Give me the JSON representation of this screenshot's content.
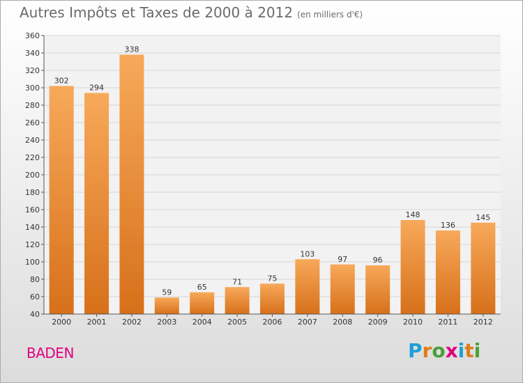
{
  "title": "Autres Impôts et Taxes de 2000 à 2012",
  "subtitle": "(en milliers d'€)",
  "commune": "BADEN",
  "logo": {
    "letters": [
      "P",
      "r",
      "o",
      "x",
      "i",
      "t",
      "i"
    ],
    "colors": [
      "#1e9fd6",
      "#e07b1a",
      "#49a03a",
      "#e0007f",
      "#1e9fd6",
      "#e07b1a",
      "#49a03a"
    ]
  },
  "chart_data": {
    "type": "bar",
    "categories": [
      "2000",
      "2001",
      "2002",
      "2003",
      "2004",
      "2005",
      "2006",
      "2007",
      "2008",
      "2009",
      "2010",
      "2011",
      "2012"
    ],
    "values": [
      302,
      294,
      338,
      59,
      65,
      71,
      75,
      103,
      97,
      96,
      148,
      136,
      145
    ],
    "ylim": [
      40,
      360
    ],
    "yticks": [
      40,
      60,
      80,
      100,
      120,
      140,
      160,
      180,
      200,
      220,
      240,
      260,
      280,
      300,
      320,
      340,
      360
    ],
    "grid": true,
    "bar_color_top": "#f7a95a",
    "bar_color_bottom": "#d7701a"
  }
}
